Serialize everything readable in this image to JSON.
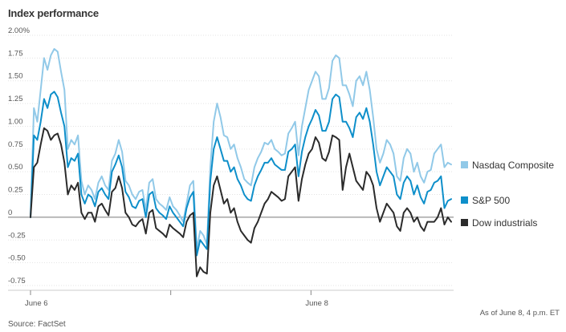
{
  "chart": {
    "title": "Index performance",
    "note": "As of June 8, 4 p.m. ET",
    "source": "Source: FactSet"
  },
  "colors": {
    "nasdaq": "#91c9e8",
    "sp500": "#0e8fca",
    "dow": "#2b2b2b",
    "grid": "#e3e3e3",
    "zero": "#777777"
  },
  "chart_data": {
    "type": "line",
    "title": "Index performance",
    "xlabel": "",
    "ylabel": "",
    "ylim": [
      -0.75,
      2.0
    ],
    "yticks": [
      -0.75,
      -0.5,
      -0.25,
      0,
      0.25,
      0.5,
      0.75,
      1.0,
      1.25,
      1.5,
      1.75,
      2.0
    ],
    "ytick_labels": [
      "-0.75",
      "-0.50",
      "-0.25",
      "0",
      "0.25",
      "0.50",
      "0.75",
      "1.00",
      "1.25",
      "1.50",
      "1.75",
      "2.00%"
    ],
    "x_range": [
      0,
      78
    ],
    "x_ticks": [
      {
        "x": 0,
        "label": "June 6"
      },
      {
        "x": 26,
        "label": ""
      },
      {
        "x": 52,
        "label": "June 8"
      }
    ],
    "grid": true,
    "legend": "right",
    "series": [
      {
        "name": "Nasdaq Composite",
        "values": [
          0.0,
          1.2,
          1.05,
          1.4,
          1.75,
          1.62,
          1.78,
          1.85,
          1.82,
          1.6,
          1.4,
          0.75,
          0.85,
          0.8,
          0.9,
          0.4,
          0.25,
          0.35,
          0.3,
          0.2,
          0.38,
          0.45,
          0.35,
          0.3,
          0.62,
          0.7,
          0.85,
          0.72,
          0.4,
          0.35,
          0.25,
          0.2,
          0.28,
          0.3,
          0.08,
          0.38,
          0.42,
          0.2,
          0.15,
          0.12,
          0.08,
          0.22,
          0.12,
          0.08,
          0.02,
          -0.05,
          0.15,
          0.35,
          0.4,
          -0.35,
          -0.15,
          -0.2,
          -0.3,
          0.55,
          1.05,
          1.25,
          1.1,
          0.9,
          0.88,
          0.75,
          0.8,
          0.65,
          0.55,
          0.42,
          0.38,
          0.35,
          0.55,
          0.65,
          0.72,
          0.82,
          0.8,
          0.85,
          0.75,
          0.72,
          0.68,
          0.7,
          0.92,
          0.98,
          1.05,
          0.68,
          1.0,
          1.2,
          1.4,
          1.5,
          1.6,
          1.55,
          1.3,
          1.3,
          1.42,
          1.72,
          1.78,
          1.75,
          1.45,
          1.45,
          1.35,
          1.22,
          1.5,
          1.55,
          1.45,
          1.6,
          1.4,
          1.1,
          0.75,
          0.6,
          0.7,
          0.85,
          0.8,
          0.7,
          0.45,
          0.4,
          0.65,
          0.75,
          0.7,
          0.5,
          0.6,
          0.45,
          0.38,
          0.5,
          0.52,
          0.7,
          0.75,
          0.8,
          0.55,
          0.6,
          0.58
        ]
      },
      {
        "name": "S&P 500",
        "values": [
          0.0,
          0.9,
          0.85,
          1.05,
          1.3,
          1.2,
          1.35,
          1.38,
          1.32,
          1.15,
          1.0,
          0.55,
          0.65,
          0.62,
          0.7,
          0.25,
          0.15,
          0.25,
          0.22,
          0.12,
          0.28,
          0.32,
          0.25,
          0.2,
          0.5,
          0.58,
          0.68,
          0.55,
          0.28,
          0.22,
          0.12,
          0.1,
          0.18,
          0.2,
          0.0,
          0.25,
          0.28,
          0.1,
          0.05,
          0.02,
          -0.02,
          0.12,
          0.05,
          0.0,
          -0.05,
          -0.1,
          0.1,
          0.22,
          0.28,
          -0.42,
          -0.25,
          -0.3,
          -0.35,
          0.4,
          0.75,
          0.88,
          0.75,
          0.62,
          0.62,
          0.5,
          0.55,
          0.42,
          0.35,
          0.25,
          0.2,
          0.18,
          0.35,
          0.45,
          0.52,
          0.6,
          0.6,
          0.65,
          0.58,
          0.55,
          0.52,
          0.52,
          0.72,
          0.75,
          0.8,
          0.45,
          0.72,
          0.88,
          1.0,
          1.08,
          1.18,
          1.12,
          0.95,
          0.95,
          1.05,
          1.3,
          1.35,
          1.32,
          1.05,
          1.05,
          0.98,
          0.88,
          1.1,
          1.15,
          1.08,
          1.2,
          1.05,
          0.8,
          0.5,
          0.35,
          0.45,
          0.55,
          0.5,
          0.45,
          0.25,
          0.2,
          0.38,
          0.45,
          0.4,
          0.25,
          0.35,
          0.22,
          0.15,
          0.28,
          0.3,
          0.38,
          0.4,
          0.45,
          0.1,
          0.18,
          0.2
        ]
      },
      {
        "name": "Dow industrials",
        "values": [
          0.0,
          0.55,
          0.6,
          0.8,
          0.98,
          0.95,
          0.85,
          0.9,
          0.92,
          0.8,
          0.6,
          0.25,
          0.35,
          0.3,
          0.38,
          0.05,
          -0.02,
          0.05,
          0.05,
          -0.05,
          0.12,
          0.15,
          0.08,
          0.02,
          0.28,
          0.32,
          0.45,
          0.32,
          0.05,
          0.0,
          -0.08,
          -0.1,
          -0.05,
          -0.02,
          -0.18,
          0.05,
          0.08,
          -0.12,
          -0.15,
          -0.18,
          -0.22,
          -0.08,
          -0.12,
          -0.15,
          -0.18,
          -0.22,
          -0.05,
          0.02,
          0.05,
          -0.65,
          -0.55,
          -0.6,
          -0.62,
          0.05,
          0.35,
          0.45,
          0.3,
          0.15,
          0.2,
          0.05,
          0.1,
          -0.05,
          -0.15,
          -0.2,
          -0.25,
          -0.28,
          -0.12,
          -0.05,
          0.05,
          0.15,
          0.2,
          0.28,
          0.25,
          0.22,
          0.18,
          0.2,
          0.45,
          0.5,
          0.55,
          0.18,
          0.42,
          0.58,
          0.7,
          0.75,
          0.88,
          0.82,
          0.65,
          0.62,
          0.72,
          0.9,
          0.88,
          0.85,
          0.3,
          0.55,
          0.7,
          0.55,
          0.4,
          0.35,
          0.3,
          0.5,
          0.45,
          0.35,
          0.1,
          -0.05,
          0.05,
          0.15,
          0.1,
          0.05,
          -0.1,
          -0.15,
          0.05,
          0.1,
          0.05,
          -0.05,
          0.0,
          -0.1,
          -0.15,
          -0.05,
          -0.05,
          -0.05,
          0.0,
          0.1,
          -0.08,
          0.0,
          -0.05
        ]
      }
    ]
  }
}
